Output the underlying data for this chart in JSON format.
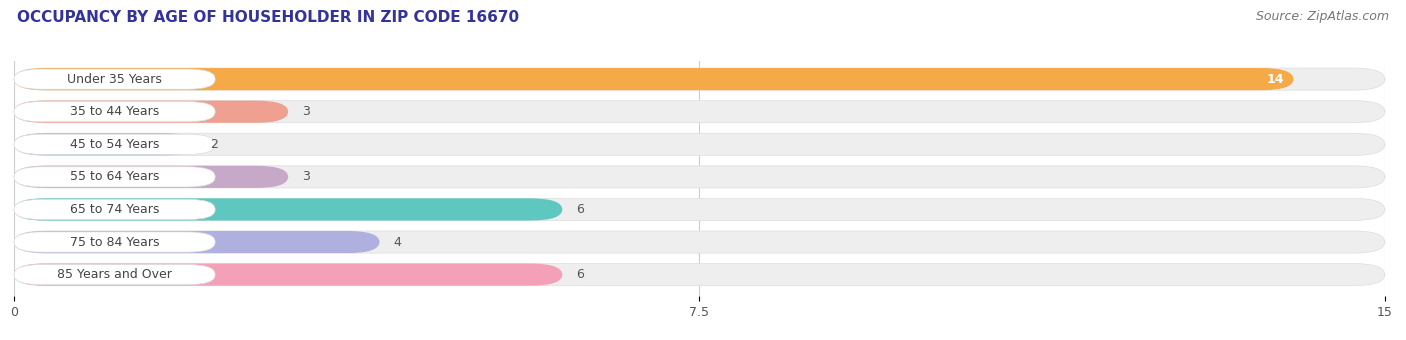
{
  "title": "OCCUPANCY BY AGE OF HOUSEHOLDER IN ZIP CODE 16670",
  "source": "Source: ZipAtlas.com",
  "categories": [
    "Under 35 Years",
    "35 to 44 Years",
    "45 to 54 Years",
    "55 to 64 Years",
    "65 to 74 Years",
    "75 to 84 Years",
    "85 Years and Over"
  ],
  "values": [
    14,
    3,
    2,
    3,
    6,
    4,
    6
  ],
  "bar_colors": [
    "#F5A947",
    "#F0A090",
    "#A8B8D8",
    "#C8A8C8",
    "#5EC8C0",
    "#B0B0E0",
    "#F4A0B8"
  ],
  "xlim": [
    0,
    15
  ],
  "xticks": [
    0,
    7.5,
    15
  ],
  "title_fontsize": 11,
  "source_fontsize": 9,
  "label_fontsize": 9,
  "value_fontsize": 9,
  "background_color": "#FFFFFF",
  "bar_background": "#EEEEEE",
  "label_bg": "#FFFFFF"
}
